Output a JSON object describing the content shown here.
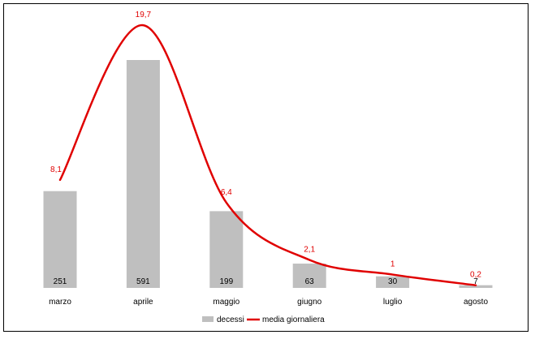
{
  "chart_data": {
    "type": "bar",
    "categories": [
      "marzo",
      "aprile",
      "maggio",
      "giugno",
      "luglio",
      "agosto"
    ],
    "series": [
      {
        "name": "decessi",
        "type": "bar",
        "values": [
          251,
          591,
          199,
          63,
          30,
          7
        ],
        "labels": [
          "251",
          "591",
          "199",
          "63",
          "30",
          "7"
        ],
        "color": "#bfbfbf"
      },
      {
        "name": "media giornaliera",
        "type": "line",
        "smooth": true,
        "values": [
          8.1,
          19.7,
          6.4,
          2.1,
          1,
          0.2
        ],
        "labels": [
          "8,1",
          "19,7",
          "6,4",
          "2,1",
          "1",
          "0,2"
        ],
        "color": "#e00000"
      }
    ],
    "bar_ylim": [
      0,
      591
    ],
    "line_ylim": [
      0,
      20.5
    ],
    "grid": false,
    "legend": "bottom"
  }
}
